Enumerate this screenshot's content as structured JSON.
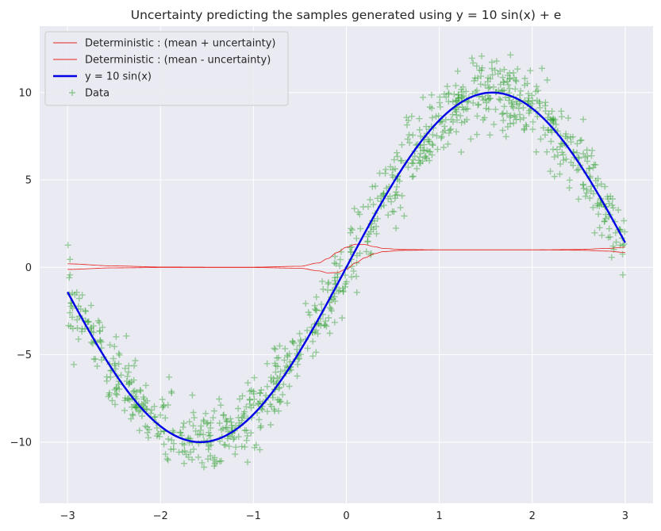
{
  "chart_data": {
    "type": "line",
    "title": "Uncertainty predicting the samples generated using y = 10 sin(x) + e",
    "xlabel": "",
    "ylabel": "",
    "xlim": [
      -3.3,
      3.3
    ],
    "ylim": [
      -13.5,
      13.8
    ],
    "xticks": [
      -3,
      -2,
      -1,
      0,
      1,
      2,
      3
    ],
    "yticks": [
      -10,
      -5,
      0,
      5,
      10
    ],
    "xtick_labels": [
      "−3",
      "−2",
      "−1",
      "0",
      "1",
      "2",
      "3"
    ],
    "ytick_labels": [
      "−10",
      "−5",
      "0",
      "5",
      "10"
    ],
    "grid": true,
    "legend_position": "top-left",
    "series": [
      {
        "name": "Deterministic : (mean + uncertainty)",
        "kind": "line",
        "color": "#e8231d",
        "x": [
          -3.0,
          -2.5,
          -2.0,
          -1.5,
          -1.0,
          -0.5,
          -0.3,
          -0.2,
          -0.1,
          0.0,
          0.1,
          0.2,
          0.3,
          0.4,
          0.6,
          1.0,
          1.5,
          2.0,
          2.5,
          2.8,
          3.0
        ],
        "y": [
          0.2,
          0.08,
          0.02,
          0.01,
          0.01,
          0.06,
          0.25,
          0.5,
          0.85,
          1.15,
          1.32,
          1.3,
          1.18,
          1.08,
          1.02,
          1.0,
          1.0,
          1.0,
          1.02,
          1.08,
          1.15
        ]
      },
      {
        "name": "Deterministic : (mean - uncertainty)",
        "kind": "line",
        "color": "#e8231d",
        "x": [
          -3.0,
          -2.5,
          -2.0,
          -1.5,
          -1.0,
          -0.5,
          -0.3,
          -0.2,
          -0.1,
          0.0,
          0.1,
          0.2,
          0.3,
          0.4,
          0.6,
          1.0,
          1.5,
          2.0,
          2.5,
          2.8,
          3.0
        ],
        "y": [
          -0.12,
          -0.03,
          -0.01,
          -0.01,
          -0.01,
          -0.05,
          -0.2,
          -0.32,
          -0.3,
          -0.1,
          0.25,
          0.55,
          0.78,
          0.9,
          0.97,
          1.0,
          1.0,
          1.0,
          0.98,
          0.93,
          0.85
        ]
      },
      {
        "name": "y = 10 sin(x)",
        "kind": "function",
        "function": "10*sin(x)",
        "x_range": [
          -3.0,
          3.0
        ],
        "color": "#0000e6"
      },
      {
        "name": "Data",
        "kind": "scatter",
        "marker": "+",
        "color": "#2ca02c",
        "x_range": [
          -3.0,
          3.0
        ],
        "y_function": "10*sin(x)",
        "noise_sd": 1.0,
        "count": 1000
      }
    ]
  }
}
